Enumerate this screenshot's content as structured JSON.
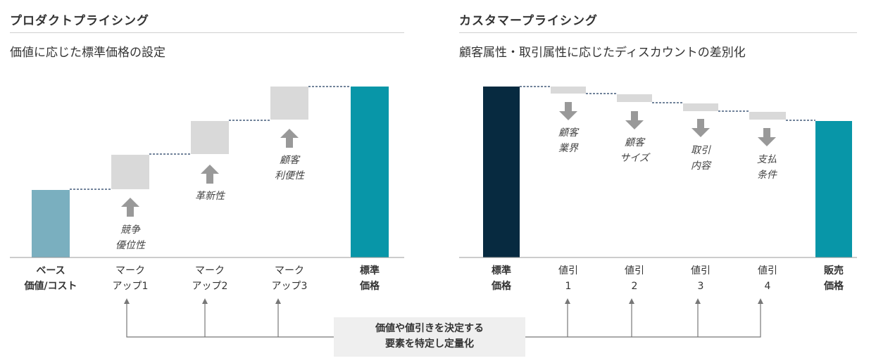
{
  "left_panel": {
    "title": "プロダクトプライシング",
    "subtitle": "価値に応じた標準価格の設定",
    "categories": [
      {
        "line1": "ベース",
        "line2": "価値/コスト"
      },
      {
        "line1": "マーク",
        "line2": "アップ1"
      },
      {
        "line1": "マーク",
        "line2": "アップ2"
      },
      {
        "line1": "マーク",
        "line2": "アップ3"
      },
      {
        "line1": "標準",
        "line2": "価格"
      }
    ],
    "notes": [
      {
        "line1": "競争",
        "line2": "優位性"
      },
      {
        "line1": "革新性",
        "line2": ""
      },
      {
        "line1": "顧客",
        "line2": "利便性"
      }
    ]
  },
  "right_panel": {
    "title": "カスタマープライシング",
    "subtitle": "顧客属性・取引属性に応じたディスカウントの差別化",
    "categories": [
      {
        "line1": "標準",
        "line2": "価格"
      },
      {
        "line1": "値引",
        "line2": "1"
      },
      {
        "line1": "値引",
        "line2": "2"
      },
      {
        "line1": "値引",
        "line2": "3"
      },
      {
        "line1": "値引",
        "line2": "4"
      },
      {
        "line1": "販売",
        "line2": "価格"
      }
    ],
    "notes": [
      {
        "line1": "顧客",
        "line2": "業界"
      },
      {
        "line1": "顧客",
        "line2": "サイズ"
      },
      {
        "line1": "取引",
        "line2": "内容"
      },
      {
        "line1": "支払",
        "line2": "条件"
      }
    ]
  },
  "callout": {
    "line1": "価値や値引きを決定する",
    "line2": "要素を特定し定量化"
  },
  "colors": {
    "base_bar": "#7aafbf",
    "total_bar": "#0896a8",
    "standard_bar_dark": "#072a40",
    "step_box": "#d9d9d9",
    "arrow": "#999999",
    "connector": "#1f3a5f",
    "axis": "#999999",
    "callout_bg": "#efefef",
    "callout_line": "#777777"
  }
}
